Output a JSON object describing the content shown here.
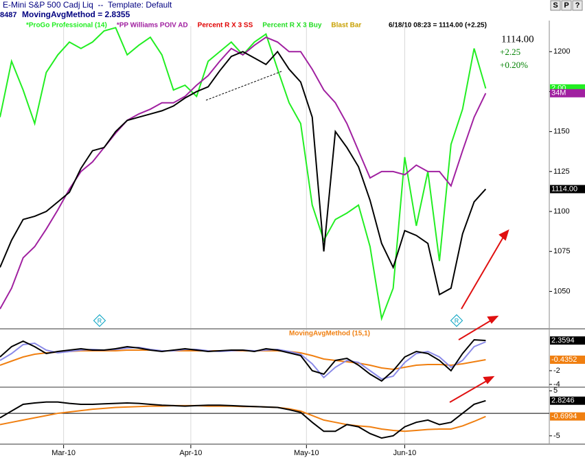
{
  "window": {
    "title": "E-Mini S&P 500 Cadj Liq  --  Template: Default",
    "buttons": [
      "S",
      "P",
      "?"
    ],
    "status_id": "8487",
    "status_text": "MovingAvgMethod = 2.8355",
    "quote": "6/18/10 08:23 = 1114.00 (+2.25)",
    "last_price": "1114.00",
    "last_change": "+2.25",
    "last_percent": "+0.20%",
    "markers": [
      "R",
      "R"
    ]
  },
  "chart_data": [
    {
      "type": "line",
      "xlim": [
        0,
        95
      ],
      "ylim": [
        1027,
        1216
      ],
      "yticks": [
        1050,
        1075,
        1100,
        1125,
        1150,
        1175,
        1200
      ],
      "x": [
        0,
        2,
        4,
        6,
        8,
        10,
        12,
        14,
        16,
        18,
        20,
        22,
        24,
        26,
        28,
        30,
        32,
        34,
        36,
        38,
        40,
        42,
        44,
        46,
        48,
        50,
        52,
        54,
        56,
        58,
        60,
        62,
        64,
        66,
        68,
        70,
        72,
        74,
        76,
        78,
        80,
        82,
        84
      ],
      "legend_extra": [
        {
          "name": "Percent R X 3 SS",
          "color": "#e00000"
        },
        {
          "name": "Percent R X 3 Buy",
          "color": "#22dd22"
        },
        {
          "name": "Blast Bar",
          "color": "#c8a000"
        }
      ],
      "series": [
        {
          "name": "*ProGo Professional (14)",
          "color": "#22ee22",
          "tag": "2.00",
          "values": [
            1159,
            1194,
            1176,
            1155,
            1187,
            1198,
            1206,
            1202,
            1206,
            1213,
            1215,
            1198,
            1204,
            1209,
            1198,
            1176,
            1179,
            1172,
            1194,
            1200,
            1206,
            1198,
            1206,
            1211,
            1189,
            1168,
            1155,
            1104,
            1082,
            1095,
            1099,
            1104,
            1078,
            1033,
            1052,
            1134,
            1091,
            1125,
            1069,
            1142,
            1164,
            1202,
            1177
          ]
        },
        {
          "name": "*PP Williams POIV AD",
          "color": "#a020a0",
          "tag": "34M",
          "values": [
            1039,
            1052,
            1071,
            1078,
            1089,
            1101,
            1114,
            1125,
            1131,
            1140,
            1149,
            1157,
            1161,
            1164,
            1168,
            1168,
            1172,
            1179,
            1185,
            1194,
            1202,
            1198,
            1204,
            1209,
            1206,
            1200,
            1200,
            1189,
            1176,
            1168,
            1155,
            1138,
            1121,
            1125,
            1125,
            1123,
            1129,
            1125,
            1125,
            1116,
            1138,
            1159,
            1174
          ]
        },
        {
          "color": "#000000",
          "tag": "1114.00",
          "values": [
            1065,
            1082,
            1095,
            1097,
            1100,
            1106,
            1112,
            1127,
            1138,
            1140,
            1150,
            1157,
            1159,
            1161,
            1163,
            1166,
            1171,
            1175,
            1178,
            1188,
            1197,
            1200,
            1196,
            1192,
            1200,
            1189,
            1181,
            1159,
            1075,
            1150,
            1140,
            1128,
            1107,
            1080,
            1065,
            1088,
            1085,
            1080,
            1048,
            1052,
            1086,
            1106,
            1114
          ]
        }
      ]
    },
    {
      "type": "line",
      "title": "MovingAvgMethod (15,1)",
      "xlim": [
        0,
        95
      ],
      "ylim": [
        -4.3,
        4
      ],
      "yticks": [
        -4,
        -2
      ],
      "x": [
        0,
        2,
        4,
        6,
        8,
        10,
        12,
        14,
        16,
        18,
        20,
        22,
        24,
        26,
        28,
        30,
        32,
        34,
        36,
        38,
        40,
        42,
        44,
        46,
        48,
        50,
        52,
        54,
        56,
        58,
        60,
        62,
        64,
        66,
        68,
        70,
        72,
        74,
        76,
        78,
        80,
        82,
        84
      ],
      "series": [
        {
          "color": "#f07f10",
          "tag": "-0.4352",
          "values": [
            -1.2,
            -0.6,
            0,
            0.4,
            0.6,
            0.7,
            0.8,
            0.9,
            0.9,
            0.9,
            0.9,
            1.0,
            1.0,
            1.0,
            0.9,
            0.9,
            0.9,
            0.9,
            0.9,
            0.9,
            0.9,
            0.9,
            0.9,
            0.9,
            0.9,
            0.8,
            0.6,
            0.2,
            -0.3,
            -0.5,
            -0.7,
            -0.9,
            -1.2,
            -1.6,
            -1.8,
            -1.5,
            -1.2,
            -1.1,
            -1.1,
            -1.2,
            -1.0,
            -0.7,
            -0.4
          ]
        },
        {
          "color": "#8a8ae8",
          "values": [
            -0.5,
            0.5,
            1.8,
            2.0,
            1.0,
            0.6,
            0.8,
            1.0,
            1.1,
            1.0,
            1.1,
            1.3,
            1.4,
            1.1,
            0.9,
            0.9,
            1.1,
            1.1,
            0.9,
            0.8,
            0.9,
            1.0,
            0.9,
            1.0,
            1.1,
            0.8,
            0.4,
            -1.0,
            -3.0,
            -1.5,
            -0.5,
            -0.8,
            -2.0,
            -3.2,
            -2.8,
            -0.8,
            0.5,
            0.8,
            0,
            -1.5,
            -0.5,
            1.5,
            2.2
          ]
        },
        {
          "color": "#000000",
          "tag": "2.3594",
          "values": [
            0,
            1.5,
            2.3,
            1.5,
            0.5,
            0.8,
            1.0,
            1.2,
            1.0,
            1.0,
            1.2,
            1.5,
            1.3,
            1.0,
            0.8,
            1.0,
            1.2,
            1.0,
            0.8,
            0.9,
            1.0,
            1.0,
            0.8,
            1.2,
            1.0,
            0.6,
            0.2,
            -2.0,
            -2.5,
            -0.5,
            -0.2,
            -1.2,
            -2.5,
            -3.5,
            -2.0,
            0,
            0.8,
            0.5,
            -0.5,
            -2.0,
            0.5,
            2.5,
            2.4
          ]
        }
      ]
    },
    {
      "type": "line",
      "xlim": [
        0,
        95
      ],
      "ylim": [
        -6.7,
        5.5
      ],
      "yticks": [
        5,
        -5
      ],
      "hline": 0,
      "xticks": [
        {
          "value": 11,
          "label": "Mar-10"
        },
        {
          "value": 33,
          "label": "Apr-10"
        },
        {
          "value": 53,
          "label": "May-10"
        },
        {
          "value": 70,
          "label": "Jun-10"
        }
      ],
      "x": [
        0,
        2,
        4,
        6,
        8,
        10,
        12,
        14,
        16,
        18,
        20,
        22,
        24,
        26,
        28,
        30,
        32,
        34,
        36,
        38,
        40,
        42,
        44,
        46,
        48,
        50,
        52,
        54,
        56,
        58,
        60,
        62,
        64,
        66,
        68,
        70,
        72,
        74,
        76,
        78,
        80,
        82,
        84
      ],
      "series": [
        {
          "color": "#f07f10",
          "tag": "-0.6994",
          "values": [
            -2.5,
            -2.0,
            -1.5,
            -1.0,
            -0.5,
            0,
            0.3,
            0.6,
            0.9,
            1.1,
            1.3,
            1.4,
            1.5,
            1.6,
            1.6,
            1.7,
            1.7,
            1.7,
            1.6,
            1.6,
            1.6,
            1.5,
            1.5,
            1.4,
            1.3,
            1.0,
            0.5,
            -0.5,
            -1.5,
            -2.0,
            -2.5,
            -2.8,
            -3.0,
            -3.5,
            -3.8,
            -4.0,
            -3.8,
            -3.6,
            -3.5,
            -3.5,
            -2.8,
            -1.8,
            -0.7
          ]
        },
        {
          "color": "#000000",
          "tag": "2.8246",
          "values": [
            -1,
            0.5,
            2,
            2.3,
            2.5,
            2.5,
            2.2,
            2.0,
            2.0,
            2.1,
            2.2,
            2.3,
            2.2,
            2.0,
            1.8,
            1.7,
            1.6,
            1.7,
            1.8,
            1.8,
            1.7,
            1.6,
            1.5,
            1.4,
            1.3,
            0.8,
            0.2,
            -2.0,
            -4.0,
            -4.0,
            -2.5,
            -3.0,
            -4.5,
            -5.5,
            -5.0,
            -3.0,
            -2.0,
            -1.5,
            -2.5,
            -2.0,
            0,
            2.0,
            2.8
          ]
        }
      ]
    }
  ]
}
